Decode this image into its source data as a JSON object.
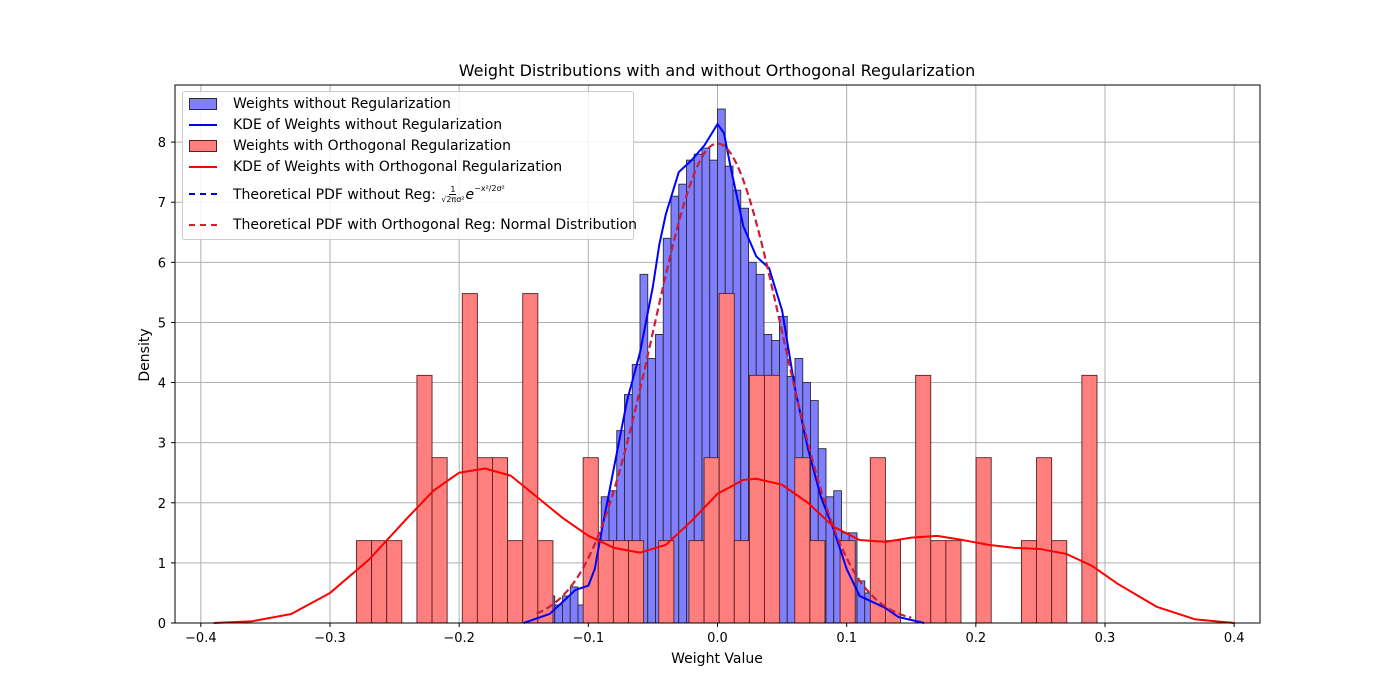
{
  "chart_data": {
    "type": "bar",
    "title": "Weight Distributions with and without Orthogonal Regularization",
    "xlabel": "Weight Value",
    "ylabel": "Density",
    "xlim": [
      -0.42,
      0.42
    ],
    "ylim": [
      0,
      8.95
    ],
    "xticks": [
      -0.4,
      -0.3,
      -0.2,
      -0.1,
      0.0,
      0.1,
      0.2,
      0.3,
      0.4
    ],
    "xtick_labels": [
      "−0.4",
      "−0.3",
      "−0.2",
      "−0.1",
      "0.0",
      "0.1",
      "0.2",
      "0.3",
      "0.4"
    ],
    "yticks": [
      0,
      1,
      2,
      3,
      4,
      5,
      6,
      7,
      8
    ],
    "ytick_labels": [
      "0",
      "1",
      "2",
      "3",
      "4",
      "5",
      "6",
      "7",
      "8"
    ],
    "grid": true,
    "legend_position": "top-left",
    "colors": {
      "blue_fill": "#7f7fff",
      "blue_edge": "#2b2b2b",
      "blue_line": "#0000ff",
      "red_fill": "#ff7f7f",
      "red_edge": "#5a2020",
      "red_line": "#ff0000",
      "theory_red": "#dd1c2a",
      "grid": "#b0b0b0"
    },
    "series": [
      {
        "name": "Weights without Regularization",
        "kind": "histogram",
        "bin_width": 0.006,
        "bin_starts": [
          -0.132,
          -0.126,
          -0.12,
          -0.114,
          -0.108,
          -0.102,
          -0.096,
          -0.09,
          -0.084,
          -0.078,
          -0.072,
          -0.066,
          -0.06,
          -0.054,
          -0.048,
          -0.042,
          -0.036,
          -0.03,
          -0.024,
          -0.018,
          -0.012,
          -0.006,
          0.0,
          0.006,
          0.012,
          0.018,
          0.024,
          0.03,
          0.036,
          0.042,
          0.048,
          0.054,
          0.06,
          0.066,
          0.072,
          0.078,
          0.084,
          0.09,
          0.096,
          0.102,
          0.108,
          0.114,
          0.12,
          0.126
        ],
        "values": [
          0.45,
          0.3,
          0.45,
          0.6,
          0.3,
          0.6,
          1.0,
          2.1,
          2.2,
          3.2,
          3.8,
          4.3,
          5.8,
          4.4,
          4.8,
          6.4,
          7.1,
          7.3,
          7.7,
          7.8,
          7.9,
          7.7,
          8.55,
          7.6,
          7.2,
          6.9,
          6.0,
          5.8,
          4.8,
          4.7,
          5.1,
          4.1,
          4.4,
          4.0,
          3.7,
          2.9,
          2.1,
          2.2,
          1.5,
          1.5,
          0.7,
          0.5,
          0.4,
          0.45
        ]
      },
      {
        "name": "KDE of Weights without Regularization",
        "kind": "line",
        "x": [
          -0.15,
          -0.13,
          -0.12,
          -0.11,
          -0.1,
          -0.095,
          -0.09,
          -0.08,
          -0.07,
          -0.06,
          -0.05,
          -0.045,
          -0.04,
          -0.03,
          -0.02,
          -0.01,
          0.0,
          0.005,
          0.01,
          0.02,
          0.03,
          0.04,
          0.05,
          0.06,
          0.07,
          0.08,
          0.09,
          0.1,
          0.11,
          0.12,
          0.13,
          0.14,
          0.16
        ],
        "y": [
          0.0,
          0.15,
          0.35,
          0.55,
          0.62,
          0.9,
          1.5,
          2.6,
          3.7,
          4.5,
          5.6,
          6.3,
          6.8,
          7.5,
          7.7,
          7.95,
          8.3,
          8.15,
          7.6,
          6.6,
          6.1,
          5.9,
          5.2,
          3.9,
          2.9,
          2.1,
          1.55,
          0.9,
          0.45,
          0.35,
          0.25,
          0.1,
          0.0
        ]
      },
      {
        "name": "Weights with Orthogonal Regularization",
        "kind": "histogram",
        "bin_width": 0.0117,
        "bin_starts": [
          -0.2795,
          -0.2678,
          -0.2561,
          -0.2444,
          -0.2327,
          -0.221,
          -0.2093,
          -0.1976,
          -0.1859,
          -0.1742,
          -0.1625,
          -0.1508,
          -0.1391,
          -0.1274,
          -0.1157,
          -0.104,
          -0.0923,
          -0.0806,
          -0.0689,
          -0.0572,
          -0.0455,
          -0.0338,
          -0.0221,
          -0.0104,
          0.0013,
          0.013,
          0.0247,
          0.0364,
          0.0481,
          0.0598,
          0.0715,
          0.0832,
          0.0949,
          0.1066,
          0.1183,
          0.13,
          0.1417,
          0.1534,
          0.1651,
          0.1768,
          0.1885,
          0.2002,
          0.2119,
          0.2236,
          0.2353,
          0.247,
          0.2587,
          0.2704,
          0.2821
        ],
        "values": [
          1.37,
          1.37,
          1.37,
          0,
          4.12,
          2.75,
          0,
          5.48,
          2.75,
          2.75,
          1.37,
          5.48,
          1.37,
          0,
          0,
          2.75,
          1.37,
          1.37,
          1.37,
          0,
          1.37,
          0,
          1.37,
          2.75,
          5.48,
          1.37,
          4.12,
          4.12,
          0,
          2.75,
          1.37,
          0,
          1.37,
          0,
          2.75,
          1.37,
          0,
          4.12,
          1.37,
          1.37,
          0,
          2.75,
          0,
          0,
          1.37,
          2.75,
          1.37,
          0,
          4.12
        ]
      },
      {
        "name": "KDE of Weights with Orthogonal Regularization",
        "kind": "line",
        "x": [
          -0.39,
          -0.36,
          -0.33,
          -0.3,
          -0.27,
          -0.24,
          -0.22,
          -0.2,
          -0.18,
          -0.16,
          -0.14,
          -0.12,
          -0.1,
          -0.08,
          -0.06,
          -0.04,
          -0.02,
          0.0,
          0.02,
          0.03,
          0.05,
          0.07,
          0.09,
          0.11,
          0.13,
          0.15,
          0.17,
          0.19,
          0.21,
          0.23,
          0.25,
          0.27,
          0.29,
          0.31,
          0.34,
          0.37,
          0.4
        ],
        "y": [
          0.0,
          0.03,
          0.15,
          0.5,
          1.05,
          1.75,
          2.2,
          2.5,
          2.57,
          2.45,
          2.1,
          1.75,
          1.45,
          1.25,
          1.17,
          1.3,
          1.7,
          2.15,
          2.38,
          2.4,
          2.3,
          2.0,
          1.6,
          1.38,
          1.35,
          1.42,
          1.45,
          1.38,
          1.3,
          1.25,
          1.23,
          1.15,
          0.95,
          0.65,
          0.27,
          0.06,
          0.0
        ]
      },
      {
        "name": "Theoretical PDF without Reg: ",
        "kind": "pdf",
        "mean": 0.0,
        "sd": 0.05,
        "x_range": [
          -0.14,
          0.15
        ]
      },
      {
        "name": "Theoretical PDF with Orthogonal Reg: Normal Distribution",
        "kind": "pdf",
        "mean": 0.0,
        "sd": 0.05,
        "x_range": [
          -0.14,
          0.15
        ]
      }
    ]
  }
}
